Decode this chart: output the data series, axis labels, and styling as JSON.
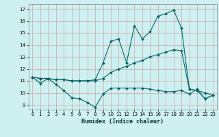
{
  "xlabel": "Humidex (Indice chaleur)",
  "bg_color": "#cff0f0",
  "grid_color": "#c8a8a8",
  "line_color": "#006666",
  "xlim": [
    -0.5,
    23.5
  ],
  "ylim": [
    8.6,
    17.4
  ],
  "xticks": [
    0,
    1,
    2,
    3,
    4,
    5,
    6,
    7,
    8,
    9,
    10,
    11,
    12,
    13,
    14,
    15,
    16,
    17,
    18,
    19,
    20,
    21,
    22,
    23
  ],
  "yticks": [
    9,
    10,
    11,
    12,
    13,
    14,
    15,
    16,
    17
  ],
  "series": [
    {
      "x": [
        0,
        1,
        2,
        3,
        4,
        5,
        6,
        7,
        8,
        9,
        10,
        11,
        12,
        13,
        14,
        15,
        16,
        17,
        18,
        19,
        20,
        21,
        22,
        23
      ],
      "y": [
        11.3,
        10.8,
        11.2,
        10.7,
        10.2,
        9.6,
        9.5,
        9.2,
        8.8,
        9.9,
        10.4,
        10.4,
        10.4,
        10.4,
        10.4,
        10.3,
        10.2,
        10.1,
        10.1,
        10.2,
        9.9,
        10.3,
        9.5,
        9.8
      ]
    },
    {
      "x": [
        0,
        1,
        2,
        3,
        4,
        5,
        6,
        7,
        8,
        9,
        10,
        11,
        12,
        13,
        14,
        15,
        16,
        17,
        18,
        19,
        20,
        21,
        22,
        23
      ],
      "y": [
        11.3,
        11.2,
        11.2,
        11.1,
        11.1,
        11.0,
        11.0,
        11.0,
        11.0,
        11.2,
        11.7,
        12.0,
        12.2,
        12.5,
        12.7,
        13.0,
        13.2,
        13.4,
        13.6,
        13.5,
        10.3,
        10.2,
        10.0,
        9.8
      ]
    },
    {
      "x": [
        0,
        1,
        2,
        3,
        4,
        5,
        6,
        7,
        8,
        9,
        10,
        11,
        12,
        13,
        14,
        15,
        16,
        17,
        18,
        19,
        20,
        21,
        22,
        23
      ],
      "y": [
        11.3,
        11.2,
        11.2,
        11.1,
        11.1,
        11.0,
        11.0,
        11.0,
        11.1,
        12.5,
        14.3,
        14.5,
        12.5,
        15.6,
        14.5,
        15.1,
        16.4,
        16.6,
        16.9,
        15.4,
        10.3,
        10.2,
        9.5,
        9.8
      ]
    }
  ]
}
